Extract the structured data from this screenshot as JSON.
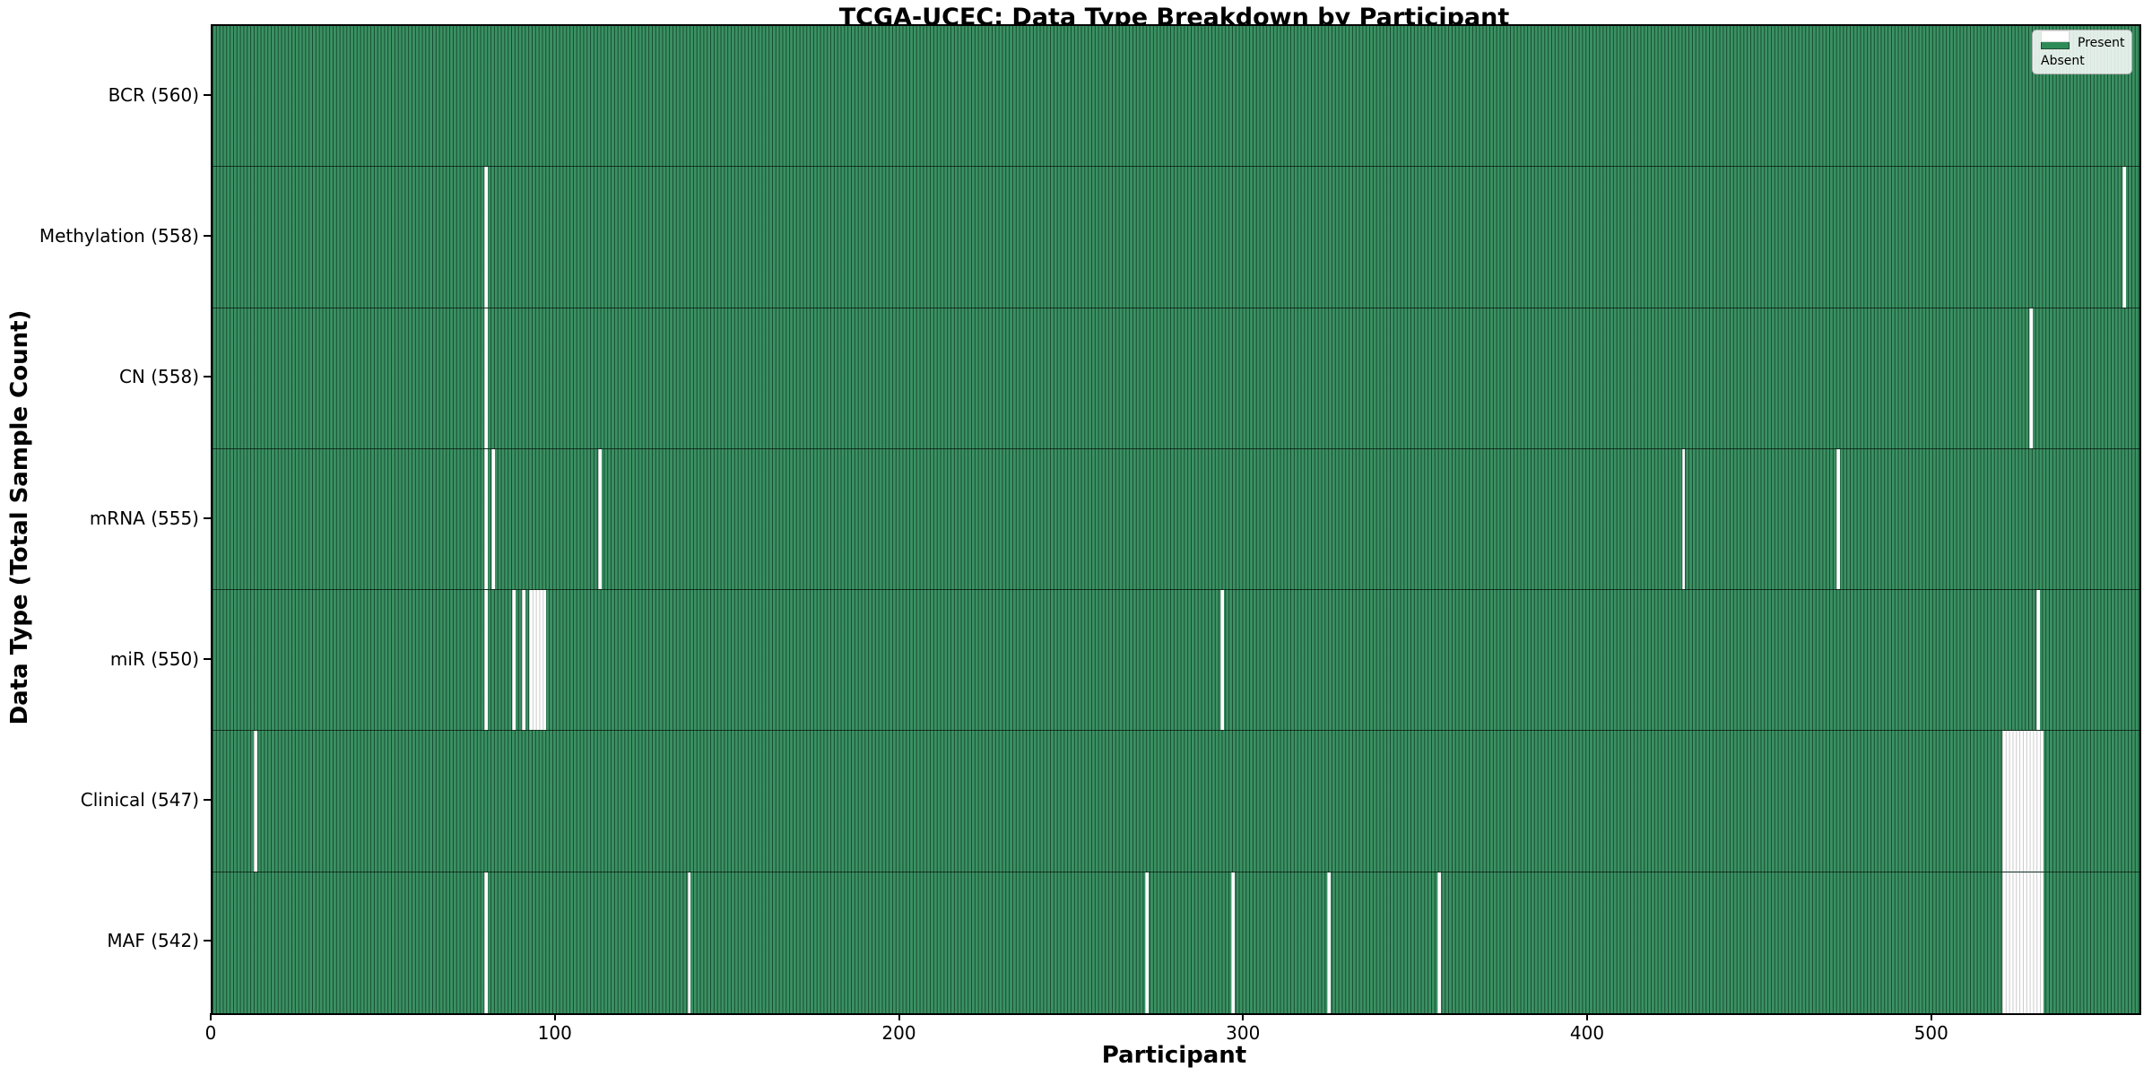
{
  "title": "TCGA-UCEC: Data Type Breakdown by Participant",
  "legend": {
    "present_label": "Present",
    "absent_label": "Absent"
  },
  "chart_data": {
    "type": "heatmap",
    "title": "TCGA-UCEC: Data Type Breakdown by Participant",
    "xlabel": "Participant",
    "ylabel": "Data Type (Total Sample Count)",
    "x_ticks": [
      0,
      100,
      200,
      300,
      400,
      500
    ],
    "x_range": [
      0,
      560
    ],
    "n_participants": 560,
    "grid": false,
    "legend_position": "upper right",
    "legend": [
      {
        "label": "Present",
        "color": "#2e8b57"
      },
      {
        "label": "Absent",
        "color": "#ffffff"
      }
    ],
    "colors": {
      "present": "#2e8b57",
      "present_fill": "#3b9163",
      "bar_edge": "rgba(13,54,33,0.78)",
      "absent": "#ffffff",
      "absent_edge": "#c9c9c9"
    },
    "rows": [
      {
        "key": "bcr",
        "label": "BCR (560)",
        "data_type": "BCR",
        "total": 560,
        "absent_participants": []
      },
      {
        "key": "methylation",
        "label": "Methylation (558)",
        "data_type": "Methylation",
        "total": 558,
        "absent_participants": [
          79,
          555
        ]
      },
      {
        "key": "cn",
        "label": "CN (558)",
        "data_type": "CN",
        "total": 558,
        "absent_participants": [
          79,
          528
        ]
      },
      {
        "key": "mrna",
        "label": "mRNA (555)",
        "data_type": "mRNA",
        "total": 555,
        "absent_participants": [
          79,
          81,
          112,
          427,
          472
        ]
      },
      {
        "key": "mir",
        "label": "miR (550)",
        "data_type": "miR",
        "total": 550,
        "absent_participants": [
          79,
          87,
          90,
          92,
          93,
          94,
          95,
          96,
          293,
          530
        ]
      },
      {
        "key": "clinical",
        "label": "Clinical (547)",
        "data_type": "Clinical",
        "total": 547,
        "absent_participants": [
          12,
          520,
          521,
          522,
          523,
          524,
          525,
          526,
          527,
          528,
          529,
          530,
          531
        ]
      },
      {
        "key": "maf",
        "label": "MAF (542)",
        "data_type": "MAF",
        "total": 542,
        "absent_participants": [
          79,
          138,
          271,
          296,
          324,
          356,
          520,
          521,
          522,
          523,
          524,
          525,
          526,
          527,
          528,
          529,
          530,
          531
        ]
      }
    ]
  }
}
